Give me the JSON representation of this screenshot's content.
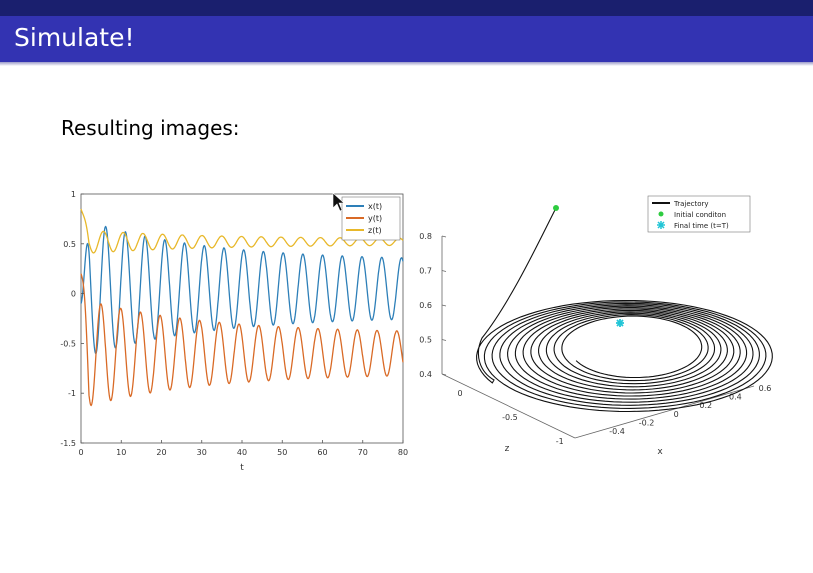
{
  "slide": {
    "title": "Simulate!",
    "body_text": "Resulting images:"
  },
  "colors": {
    "header_dark": "#1a1f6e",
    "header": "#3333b2",
    "x_series": "#2d7fb8",
    "y_series": "#d96a26",
    "z_series": "#e8b82a",
    "initial_marker": "#2ecc40",
    "final_marker": "#22c5d6"
  },
  "chart_data": [
    {
      "type": "line",
      "title": "",
      "xlabel": "t",
      "ylabel": "",
      "xlim": [
        0,
        80
      ],
      "ylim": [
        -1.5,
        1
      ],
      "x_ticks": [
        "0",
        "10",
        "20",
        "30",
        "40",
        "50",
        "60",
        "70",
        "80"
      ],
      "y_ticks": [
        "1",
        "0.5",
        "0",
        "-0.5",
        "-1",
        "-1.5"
      ],
      "legend_position": "top-right",
      "grid": false,
      "series": [
        {
          "name": "x(t)",
          "color": "#2d7fb8",
          "center": 0.05,
          "amp_start": 0.7,
          "amp_end": 0.28,
          "period": 4.9,
          "phase": 0.0,
          "start": -0.1
        },
        {
          "name": "y(t)",
          "color": "#d96a26",
          "center": -0.6,
          "amp_start": 0.55,
          "amp_end": 0.2,
          "period": 4.9,
          "phase": 1.5,
          "start": 0.2
        },
        {
          "name": "z(t)",
          "color": "#e8b82a",
          "center": 0.52,
          "amp_start": 0.12,
          "amp_end": 0.03,
          "period": 4.9,
          "phase": 0.7,
          "start": 0.85
        }
      ]
    },
    {
      "type": "line",
      "title": "",
      "xlabel": "x",
      "ylabel": "z",
      "zlabel_ticks": [
        "0.8",
        "0.7",
        "0.6",
        "0.5",
        "0.4"
      ],
      "x_ticks": [
        "-0.4",
        "-0.2",
        "0",
        "0.2",
        "0.4",
        "0.6"
      ],
      "y_ticks": [
        "0",
        "-0.5",
        "-1"
      ],
      "legend_position": "top-right",
      "grid": false,
      "legend": [
        "Trajectory",
        "Initial conditon",
        "Final time (t=T)"
      ],
      "turns": 12
    }
  ]
}
